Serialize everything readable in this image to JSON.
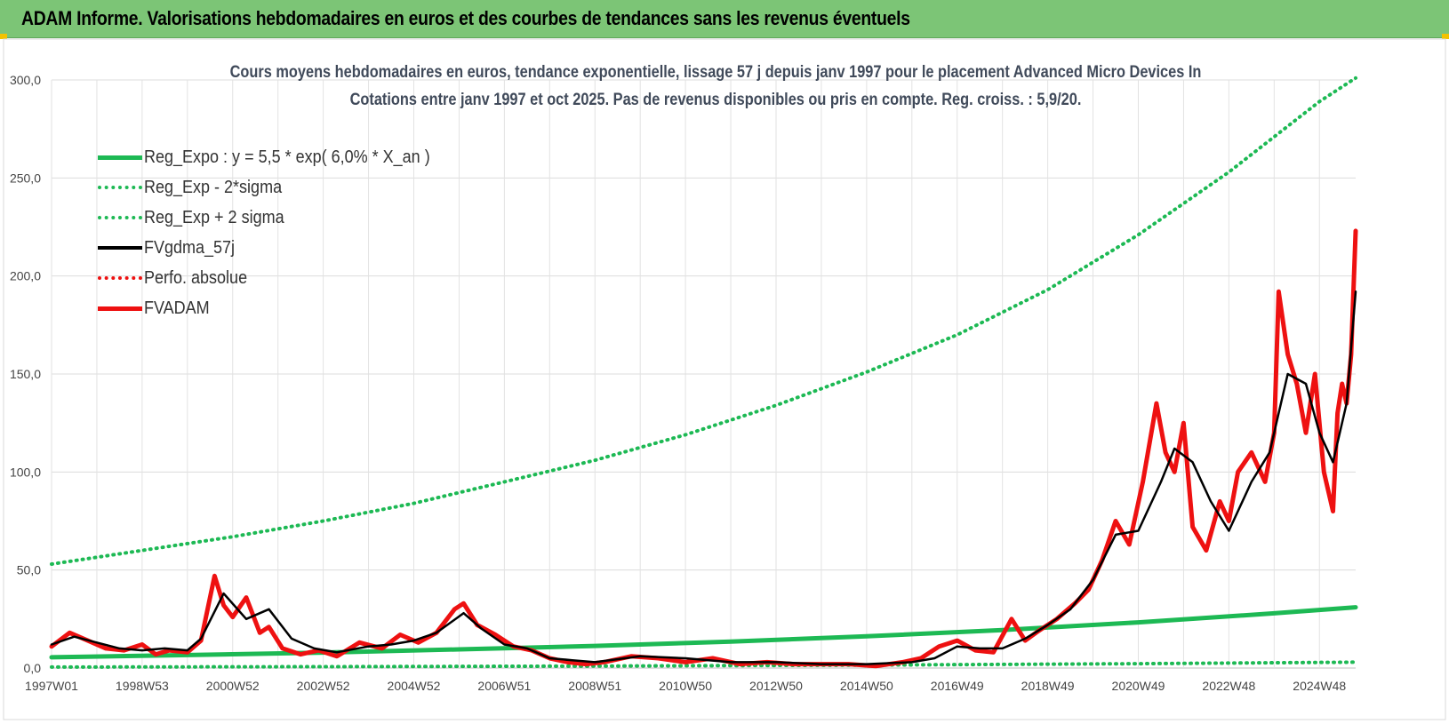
{
  "banner": {
    "title": "ADAM Informe. Valorisations hebdomadaires en euros et des courbes de tendances sans les revenus éventuels"
  },
  "colors": {
    "banner_bg": "#7cc576",
    "reg_green": "#1db954",
    "series_black": "#000000",
    "series_red": "#ee1111"
  },
  "chart_data": {
    "type": "line",
    "title": "Cours moyens hebdomadaires en euros, tendance exponentielle, lissage 57 j depuis janv 1997 pour le placement Advanced Micro Devices In",
    "subtitle": "Cotations entre janv 1997 et oct 2025. Pas de revenus disponibles ou pris en compte. Reg. croiss. : 5,9/20.",
    "xlabel": "",
    "ylabel": "",
    "ylim": [
      0,
      300
    ],
    "yticks": [
      "0,0",
      "50,0",
      "100,0",
      "150,0",
      "200,0",
      "250,0",
      "300,0"
    ],
    "xlim": [
      1997.0,
      2025.8
    ],
    "xticks": [
      {
        "label": "1997W01",
        "year": 1997.0
      },
      {
        "label": "1998W53",
        "year": 1999.0
      },
      {
        "label": "2000W52",
        "year": 2001.0
      },
      {
        "label": "2002W52",
        "year": 2003.0
      },
      {
        "label": "2004W52",
        "year": 2005.0
      },
      {
        "label": "2006W51",
        "year": 2007.0
      },
      {
        "label": "2008W51",
        "year": 2009.0
      },
      {
        "label": "2010W50",
        "year": 2011.0
      },
      {
        "label": "2012W50",
        "year": 2013.0
      },
      {
        "label": "2014W50",
        "year": 2015.0
      },
      {
        "label": "2016W49",
        "year": 2017.0
      },
      {
        "label": "2018W49",
        "year": 2019.0
      },
      {
        "label": "2020W49",
        "year": 2021.0
      },
      {
        "label": "2022W48",
        "year": 2023.0
      },
      {
        "label": "2024W48",
        "year": 2025.0
      }
    ],
    "grid": true,
    "legend_position": "top-left",
    "series": [
      {
        "name": "Reg_Expo : y = 5,5 * exp( 6,0% *  X_an )",
        "style": "solid-thick",
        "color": "#1db954",
        "x": [
          1997.0,
          2000.0,
          2003.0,
          2006.0,
          2009.0,
          2012.0,
          2015.0,
          2018.0,
          2021.0,
          2024.0,
          2025.8
        ],
        "y": [
          5.5,
          6.6,
          7.9,
          9.5,
          11.3,
          13.5,
          16.2,
          19.4,
          23.3,
          27.9,
          31.0
        ]
      },
      {
        "name": "Reg_Exp - 2*sigma",
        "style": "dotted",
        "color": "#1db954",
        "x": [
          1997.0,
          2003.0,
          2009.0,
          2015.0,
          2021.0,
          2025.8
        ],
        "y": [
          0.5,
          0.7,
          1.0,
          1.5,
          2.2,
          3.0
        ]
      },
      {
        "name": "Reg_Exp + 2 sigma",
        "style": "dotted",
        "color": "#1db954",
        "x": [
          1997.0,
          1999.0,
          2001.0,
          2003.0,
          2005.0,
          2007.0,
          2009.0,
          2011.0,
          2013.0,
          2015.0,
          2017.0,
          2019.0,
          2021.0,
          2023.0,
          2025.0,
          2025.8
        ],
        "y": [
          53,
          60,
          67,
          75,
          84,
          95,
          106,
          119,
          134,
          151,
          170,
          193,
          221,
          253,
          289,
          301
        ]
      },
      {
        "name": "FVgdma_57j",
        "style": "solid",
        "color": "#000000",
        "x": [
          1997.0,
          1997.5,
          1998.0,
          1998.5,
          1999.0,
          1999.5,
          2000.0,
          2000.3,
          2000.8,
          2001.3,
          2001.8,
          2002.3,
          2002.8,
          2003.3,
          2004.0,
          2004.5,
          2005.0,
          2005.5,
          2006.1,
          2006.5,
          2007.0,
          2007.5,
          2008.0,
          2008.5,
          2009.0,
          2010.0,
          2011.0,
          2012.0,
          2013.0,
          2014.0,
          2015.0,
          2016.0,
          2016.5,
          2017.0,
          2017.5,
          2018.0,
          2018.5,
          2019.0,
          2019.5,
          2020.0,
          2020.5,
          2021.0,
          2021.5,
          2021.8,
          2022.2,
          2022.6,
          2023.0,
          2023.5,
          2023.9,
          2024.3,
          2024.7,
          2025.0,
          2025.3,
          2025.6,
          2025.8
        ],
        "y": [
          12,
          16,
          13,
          10,
          9,
          10,
          9,
          15,
          38,
          25,
          30,
          15,
          10,
          8,
          11,
          12,
          14,
          18,
          28,
          20,
          12,
          10,
          5,
          4,
          3,
          6,
          5,
          3,
          3,
          2,
          2,
          3,
          5,
          11,
          10,
          10,
          15,
          22,
          30,
          45,
          68,
          70,
          95,
          112,
          105,
          85,
          70,
          95,
          110,
          150,
          145,
          120,
          105,
          135,
          192
        ]
      },
      {
        "name": "Perfo. absolue",
        "style": "dotted",
        "color": "#ee1111",
        "x": [],
        "y": []
      },
      {
        "name": "FVADAM",
        "style": "solid-thick",
        "color": "#ee1111",
        "x": [
          1997.0,
          1997.4,
          1997.8,
          1998.2,
          1998.6,
          1999.0,
          1999.3,
          1999.6,
          2000.0,
          2000.3,
          2000.6,
          2000.8,
          2001.0,
          2001.3,
          2001.6,
          2001.8,
          2002.1,
          2002.5,
          2002.9,
          2003.3,
          2003.8,
          2004.3,
          2004.7,
          2005.1,
          2005.5,
          2005.9,
          2006.1,
          2006.4,
          2006.8,
          2007.2,
          2007.6,
          2008.0,
          2008.4,
          2008.8,
          2009.2,
          2009.8,
          2010.4,
          2011.0,
          2011.6,
          2012.2,
          2012.8,
          2013.4,
          2014.0,
          2014.6,
          2015.2,
          2015.8,
          2016.2,
          2016.6,
          2017.0,
          2017.4,
          2017.8,
          2018.2,
          2018.5,
          2018.8,
          2019.2,
          2019.6,
          2019.9,
          2020.2,
          2020.5,
          2020.8,
          2021.1,
          2021.4,
          2021.6,
          2021.8,
          2022.0,
          2022.2,
          2022.5,
          2022.8,
          2023.0,
          2023.2,
          2023.5,
          2023.8,
          2024.0,
          2024.1,
          2024.3,
          2024.5,
          2024.7,
          2024.9,
          2025.1,
          2025.3,
          2025.4,
          2025.5,
          2025.6,
          2025.7,
          2025.8
        ],
        "y": [
          11,
          18,
          14,
          10,
          9,
          12,
          7,
          9,
          8,
          14,
          47,
          32,
          26,
          36,
          18,
          21,
          10,
          7,
          9,
          6,
          13,
          10,
          17,
          13,
          18,
          30,
          33,
          22,
          17,
          11,
          9,
          5,
          3,
          2,
          3,
          6,
          5,
          3,
          5,
          2,
          3,
          2,
          2,
          2,
          1,
          3,
          5,
          11,
          14,
          9,
          8,
          25,
          14,
          19,
          25,
          33,
          40,
          55,
          75,
          63,
          95,
          135,
          110,
          100,
          125,
          72,
          60,
          85,
          75,
          100,
          110,
          95,
          120,
          192,
          160,
          145,
          120,
          150,
          100,
          80,
          130,
          145,
          135,
          160,
          223
        ]
      }
    ]
  }
}
